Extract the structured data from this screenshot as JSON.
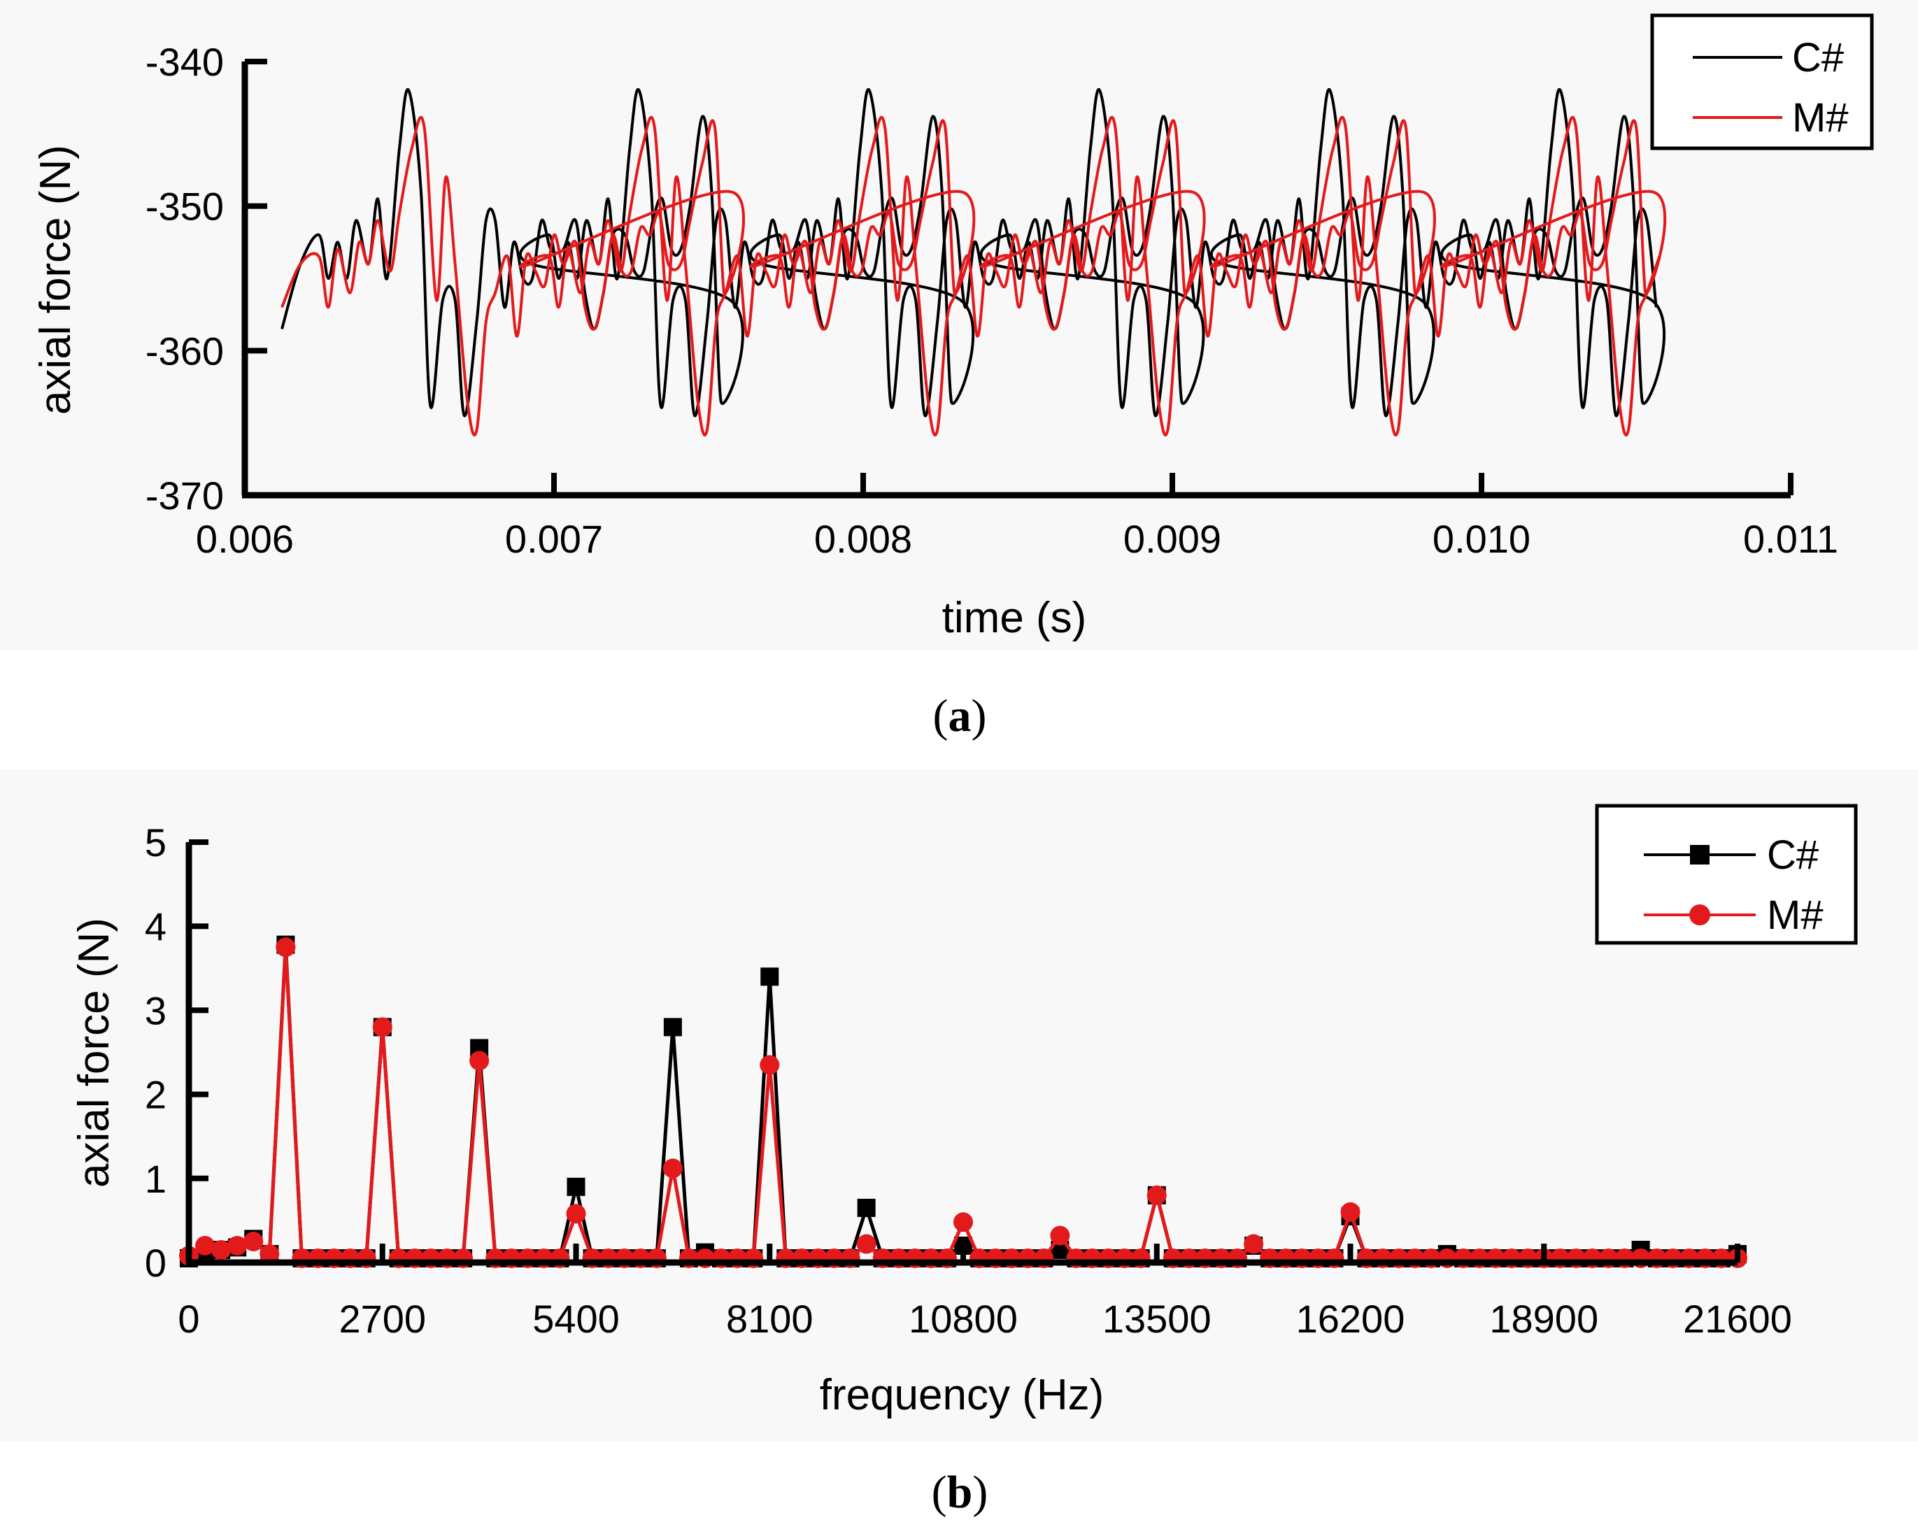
{
  "colors": {
    "black_series": "#000000",
    "red_series": "#e31a1c",
    "panel_bg": "#f8f8f8"
  },
  "chart_data": [
    {
      "panel": "(a)",
      "panel_open": "(",
      "panel_letter": "a",
      "panel_close": ")",
      "type": "line",
      "title": "",
      "xlabel": "time (s)",
      "ylabel": "axial force (N)",
      "xlim": [
        0.006,
        0.011
      ],
      "ylim": [
        -370,
        -340
      ],
      "x_ticks": [
        0.006,
        0.007,
        0.008,
        0.009,
        0.01,
        0.011
      ],
      "x_tick_labels": [
        "0.006",
        "0.007",
        "0.008",
        "0.009",
        "0.010",
        "0.011"
      ],
      "y_ticks": [
        -340,
        -350,
        -360,
        -370
      ],
      "y_tick_labels": [
        "-340",
        "-350",
        "-360",
        "-370"
      ],
      "legend": {
        "position": "top-right",
        "entries": [
          "C#",
          "M#"
        ]
      },
      "series": [
        {
          "name": "C#",
          "color": "#000000",
          "x_start": 0.00612,
          "x_end": 0.01058,
          "period": 0.000745,
          "template": {
            "times": [
              0.00612,
              0.00618,
              0.00624,
              0.00627,
              0.0063,
              0.00633,
              0.00636,
              0.0064,
              0.00643,
              0.00646,
              0.0065,
              0.00653,
              0.00657,
              0.0066,
              0.00664,
              0.00668,
              0.00671,
              0.00675,
              0.00678,
              0.00681,
              0.00684,
              0.00687,
              0.0069,
              0.00693,
              0.00696,
              0.00699,
              0.00703,
              0.00707,
              0.0071,
              0.00713,
              0.00716,
              0.00719,
              0.00723,
              0.00726,
              0.00729,
              0.00732,
              0.00735,
              0.00738,
              0.00741,
              0.00744,
              0.00748,
              0.00751,
              0.00754,
              0.00757
            ],
            "values": [
              -358.5,
              -354,
              -352,
              -355,
              -352.5,
              -355,
              -351,
              -354,
              -349.5,
              -355,
              -346,
              -342,
              -349,
              -363.8,
              -356.5,
              -356.5,
              -364.5,
              -358,
              -351,
              -351,
              -357,
              -352.5,
              -355,
              -355,
              -351,
              -353,
              -353,
              -351,
              -356,
              -358.5,
              -356,
              -352,
              -352,
              -354.5,
              -354.5,
              -351,
              -349.5,
              -353,
              -353,
              -350,
              -343.8,
              -349,
              -363.5,
              -356.5
            ]
          }
        },
        {
          "name": "M#",
          "color": "#e31a1c",
          "x_start": 0.00612,
          "x_end": 0.01058,
          "period": 0.000745,
          "template": {
            "times": [
              0.00612,
              0.00618,
              0.00624,
              0.00627,
              0.0063,
              0.00634,
              0.00637,
              0.0064,
              0.00643,
              0.00647,
              0.0065,
              0.00654,
              0.00658,
              0.00662,
              0.00665,
              0.00668,
              0.00672,
              0.00675,
              0.00678,
              0.00681,
              0.00685,
              0.00688,
              0.00691,
              0.00694,
              0.00697,
              0.007,
              0.00703,
              0.00707,
              0.0071,
              0.00713,
              0.00716,
              0.00719,
              0.00722,
              0.00725,
              0.00728,
              0.00731,
              0.00734,
              0.00737,
              0.00741,
              0.00744,
              0.00748,
              0.00752,
              0.00755,
              0.00757
            ],
            "values": [
              -357,
              -354,
              -353.5,
              -357,
              -353,
              -356,
              -352.5,
              -354,
              -351,
              -354.5,
              -350.5,
              -346,
              -344.5,
              -356.5,
              -348,
              -354,
              -363.5,
              -365.5,
              -358,
              -356,
              -353.5,
              -359,
              -353.5,
              -354.5,
              -355.5,
              -352,
              -354,
              -352.5,
              -357,
              -358.5,
              -356,
              -352,
              -354.5,
              -354.5,
              -351.5,
              -352,
              -350.5,
              -354,
              -354,
              -351,
              -347,
              -344.5,
              -356,
              -349
            ]
          }
        }
      ]
    },
    {
      "panel": "(b)",
      "panel_open": "(",
      "panel_letter": "b",
      "panel_close": ")",
      "type": "line",
      "title": "",
      "xlabel": "frequency (Hz)",
      "ylabel": "axial force (N)",
      "xlim": [
        0,
        21600
      ],
      "ylim": [
        0,
        5
      ],
      "x_ticks": [
        0,
        2700,
        5400,
        8100,
        10800,
        13500,
        16200,
        18900,
        21600
      ],
      "x_tick_labels": [
        "0",
        "2700",
        "5400",
        "8100",
        "10800",
        "13500",
        "16200",
        "18900",
        "21600"
      ],
      "y_ticks": [
        0,
        1,
        2,
        3,
        4,
        5
      ],
      "y_tick_labels": [
        "0",
        "1",
        "2",
        "3",
        "4",
        "5"
      ],
      "legend": {
        "position": "top-right",
        "entries": [
          "C#",
          "M#"
        ]
      },
      "series": [
        {
          "name": "C#",
          "color": "#000000",
          "marker": "square",
          "x_step": 225,
          "baseline": 0.05,
          "peaks": [
            [
              0,
              0.05
            ],
            [
              225,
              0.12
            ],
            [
              450,
              0.15
            ],
            [
              675,
              0.18
            ],
            [
              900,
              0.28
            ],
            [
              1125,
              0.1
            ],
            [
              1350,
              3.78
            ],
            [
              2700,
              2.8
            ],
            [
              4050,
              2.55
            ],
            [
              5400,
              0.9
            ],
            [
              6750,
              2.8
            ],
            [
              7200,
              0.12
            ],
            [
              8100,
              3.4
            ],
            [
              9450,
              0.65
            ],
            [
              10800,
              0.2
            ],
            [
              12150,
              0.15
            ],
            [
              13500,
              0.8
            ],
            [
              14850,
              0.2
            ],
            [
              16200,
              0.55
            ],
            [
              17550,
              0.1
            ],
            [
              18900,
              0.05
            ],
            [
              20250,
              0.15
            ],
            [
              21600,
              0.1
            ]
          ]
        },
        {
          "name": "M#",
          "color": "#e31a1c",
          "marker": "circle",
          "x_step": 225,
          "baseline": 0.05,
          "peaks": [
            [
              0,
              0.08
            ],
            [
              225,
              0.2
            ],
            [
              450,
              0.15
            ],
            [
              675,
              0.2
            ],
            [
              900,
              0.25
            ],
            [
              1125,
              0.1
            ],
            [
              1350,
              3.75
            ],
            [
              2700,
              2.8
            ],
            [
              4050,
              2.4
            ],
            [
              5400,
              0.58
            ],
            [
              6750,
              1.12
            ],
            [
              8100,
              2.35
            ],
            [
              9450,
              0.22
            ],
            [
              10800,
              0.48
            ],
            [
              12150,
              0.32
            ],
            [
              13500,
              0.8
            ],
            [
              14850,
              0.22
            ],
            [
              16200,
              0.6
            ]
          ]
        }
      ]
    }
  ]
}
